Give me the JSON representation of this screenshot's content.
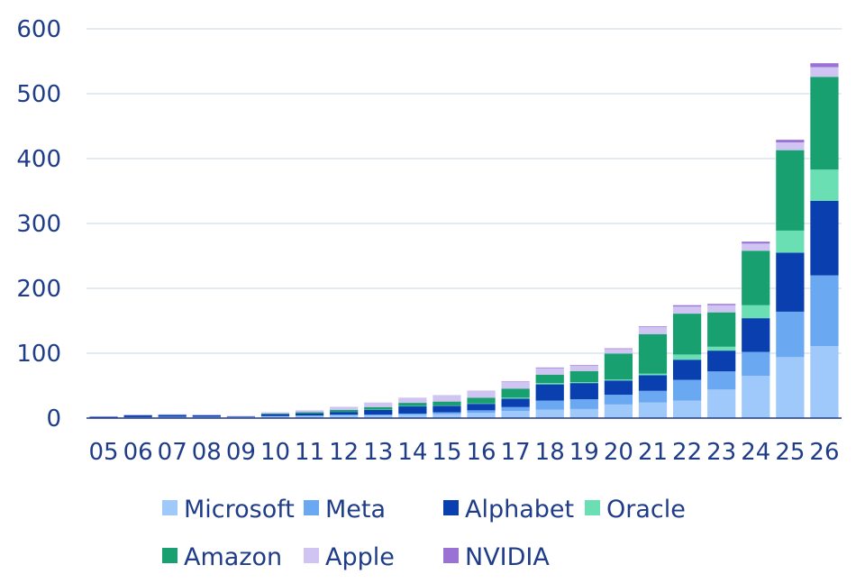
{
  "chart_data": {
    "type": "bar",
    "stacked": true,
    "title": "",
    "xlabel": "",
    "ylabel": "",
    "ylim": [
      0,
      600
    ],
    "yticks": [
      0,
      100,
      200,
      300,
      400,
      500,
      600
    ],
    "grid": true,
    "legend_position": "bottom",
    "categories": [
      "05",
      "06",
      "07",
      "08",
      "09",
      "10",
      "11",
      "12",
      "13",
      "14",
      "15",
      "16",
      "17",
      "18",
      "19",
      "20",
      "21",
      "22",
      "23",
      "24",
      "25",
      "26"
    ],
    "series": [
      {
        "name": "Microsoft",
        "color": "#9fc8fb",
        "values": [
          0.5,
          1.5,
          2,
          2,
          1.5,
          2.5,
          3,
          4,
          4,
          5,
          6,
          8,
          11,
          13,
          14,
          21,
          24,
          27,
          44,
          65,
          94,
          111
        ]
      },
      {
        "name": "Meta",
        "color": "#6aa8f2",
        "values": [
          0,
          0,
          0,
          0,
          0,
          0.5,
          1,
          1.5,
          1.5,
          2,
          3,
          4,
          6,
          14,
          15,
          15,
          18,
          32,
          28,
          37,
          70,
          109
        ]
      },
      {
        "name": "Alphabet",
        "color": "#0a3fb0",
        "values": [
          1.5,
          3,
          3,
          2.5,
          1,
          3,
          3,
          4,
          7,
          11,
          10,
          10,
          13,
          25,
          25,
          22,
          24,
          31,
          32,
          52,
          91,
          115
        ]
      },
      {
        "name": "Oracle",
        "color": "#6adfb4",
        "values": [
          0,
          0,
          0,
          0,
          0,
          0,
          0,
          0,
          0.5,
          0.5,
          0.5,
          0.5,
          1.5,
          2,
          1.5,
          1.5,
          2.5,
          8,
          6,
          20,
          34,
          48
        ]
      },
      {
        "name": "Amazon",
        "color": "#18a070",
        "values": [
          0,
          0,
          0,
          0,
          0,
          1,
          2,
          3,
          4,
          5,
          6,
          9,
          14,
          13,
          17,
          40,
          61,
          63,
          53,
          84,
          124,
          143
        ]
      },
      {
        "name": "Apple",
        "color": "#cfc4f2",
        "values": [
          1,
          1,
          1,
          1,
          1,
          2,
          3,
          5,
          7,
          8,
          10,
          11,
          11,
          10,
          8,
          7,
          11,
          11,
          11,
          11,
          12,
          15
        ]
      },
      {
        "name": "NVIDIA",
        "color": "#9a72d6",
        "values": [
          0,
          0,
          0,
          0,
          0,
          0,
          0,
          0,
          0,
          0,
          0,
          0,
          0.5,
          1,
          1,
          1,
          1,
          2,
          2,
          3,
          4,
          6
        ]
      }
    ]
  }
}
